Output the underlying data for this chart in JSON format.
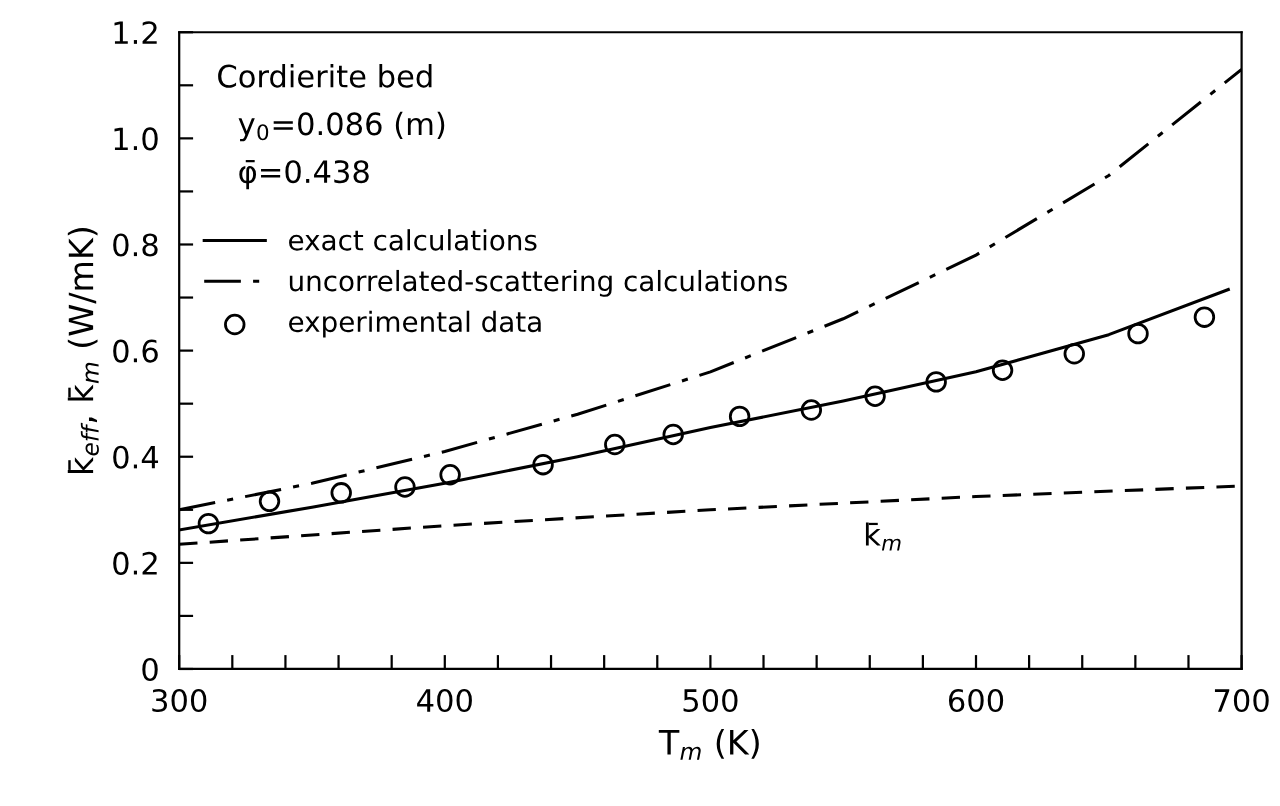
{
  "chart_data": {
    "type": "line",
    "xlabel": "T$_{m}$ (K)",
    "ylabel": "k̄$_{eff}$, k̄$_{m}$ (W/mK)",
    "annotations": [
      "Cordierite bed",
      "y$_{0}$=0.086 (m)",
      "φ̄=0.438"
    ],
    "xlim": [
      300,
      700
    ],
    "ylim": [
      0,
      1.2
    ],
    "xticks": [
      300,
      {
        "value": 320,
        "label": null
      },
      {
        "value": 340,
        "label": null
      },
      {
        "value": 360,
        "label": null
      },
      {
        "value": 380,
        "label": null
      },
      400,
      {
        "value": 420,
        "label": null
      },
      {
        "value": 440,
        "label": null
      },
      {
        "value": 460,
        "label": null
      },
      {
        "value": 480,
        "label": null
      },
      500,
      {
        "value": 520,
        "label": null
      },
      {
        "value": 540,
        "label": null
      },
      {
        "value": 560,
        "label": null
      },
      {
        "value": 580,
        "label": null
      },
      600,
      {
        "value": 620,
        "label": null
      },
      {
        "value": 640,
        "label": null
      },
      {
        "value": 660,
        "label": null
      },
      {
        "value": 680,
        "label": null
      },
      700
    ],
    "yticks": [
      0,
      {
        "value": 0.1,
        "label": null
      },
      0.2,
      {
        "value": 0.3,
        "label": null
      },
      0.4,
      {
        "value": 0.5,
        "label": null
      },
      0.6,
      {
        "value": 0.7,
        "label": null
      },
      0.8,
      {
        "value": 0.9,
        "label": null
      },
      {
        "value": 1.0,
        "label": "1.0"
      },
      {
        "value": 1.1,
        "label": null
      },
      1.2
    ],
    "grid": false,
    "legend": "top left",
    "series": [
      {
        "name": "exact calculations",
        "color": "#000000",
        "line_style": "solid",
        "marker": "none",
        "x": [
          300,
          350,
          400,
          450,
          500,
          550,
          600,
          650,
          695
        ],
        "values": [
          0.262,
          0.305,
          0.35,
          0.4,
          0.455,
          0.505,
          0.56,
          0.63,
          0.715
        ]
      },
      {
        "name": "uncorrelated-scattering calculations",
        "color": "#000000",
        "line_style": "dashdot",
        "marker": "none",
        "x": [
          300,
          350,
          400,
          450,
          500,
          550,
          600,
          650,
          700
        ],
        "values": [
          0.3,
          0.35,
          0.41,
          0.48,
          0.56,
          0.66,
          0.78,
          0.93,
          1.13
        ]
      },
      {
        "name": "k̄$_{m}$",
        "color": "#000000",
        "line_style": "dashed",
        "marker": "none",
        "x": [
          300,
          400,
          500,
          600,
          700
        ],
        "values": [
          0.235,
          0.27,
          0.3,
          0.325,
          0.345
        ]
      },
      {
        "name": "experimental data",
        "type": "scatter",
        "color": "#000000",
        "marker": "circle",
        "x": [
          311,
          334,
          361,
          385,
          402,
          437,
          464,
          486,
          511,
          538,
          562,
          585,
          610,
          637,
          661,
          686
        ],
        "values": [
          0.274,
          0.316,
          0.332,
          0.343,
          0.366,
          0.385,
          0.423,
          0.442,
          0.476,
          0.488,
          0.514,
          0.541,
          0.563,
          0.594,
          0.632,
          0.663
        ]
      }
    ]
  }
}
